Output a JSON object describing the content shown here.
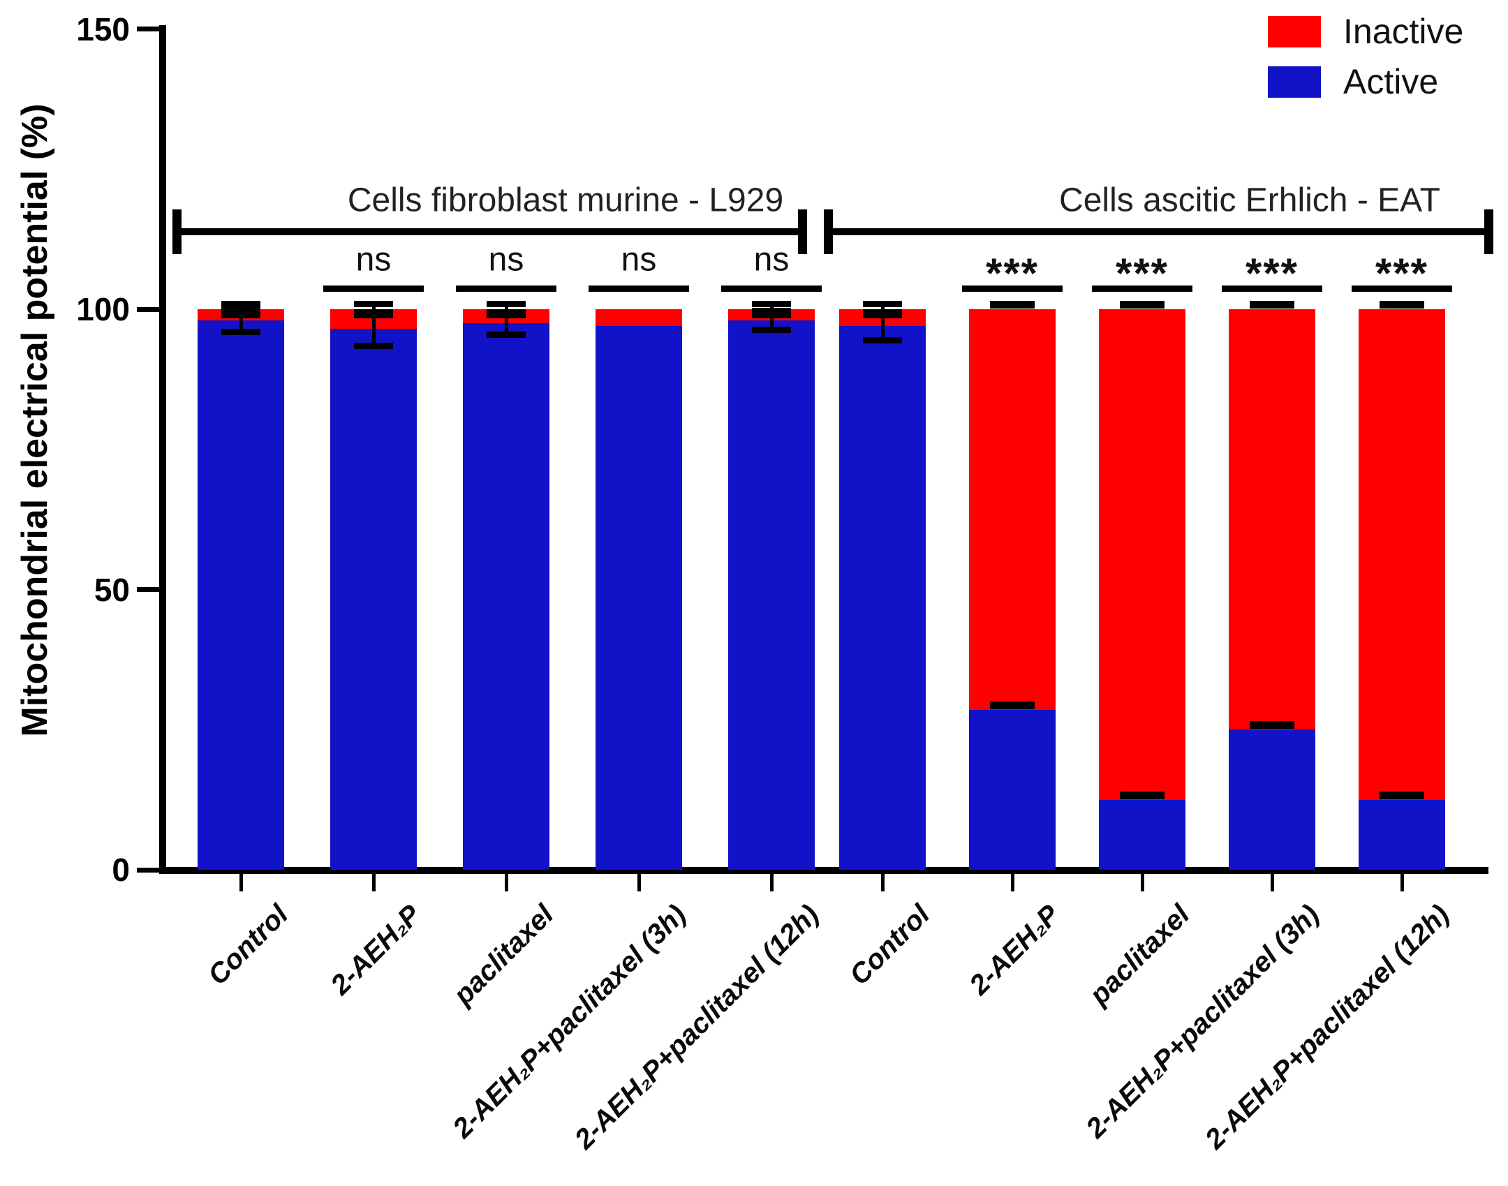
{
  "figure": {
    "background": "#ffffff"
  },
  "chart_data": {
    "type": "bar",
    "subtype": "stacked-vertical",
    "title": "",
    "xlabel": "",
    "ylabel": "Mitochondrial electrical potential (%)",
    "ylim": [
      0,
      150
    ],
    "yticks": [
      "0",
      "50",
      "100",
      "150"
    ],
    "ytick_values": [
      0,
      50,
      100,
      150
    ],
    "grid": "off",
    "legend_position": "top-right",
    "legend": [
      {
        "label": "Inactive",
        "color": "#fe0000"
      },
      {
        "label": "Active",
        "color": "#1212c8"
      }
    ],
    "series_colors": {
      "Active": "#1212c8",
      "Inactive": "#fe0000"
    },
    "groups": [
      {
        "label": "Cells fibroblast murine - L929",
        "bars": [
          {
            "label": "Control",
            "active": 98.0,
            "inactive": 2.0,
            "err_active": 2.0,
            "err_total": 1.0,
            "err_style": "ibeam",
            "sig": ""
          },
          {
            "label": "2-AEH₂P",
            "active": 96.5,
            "inactive": 3.5,
            "err_active": 3.0,
            "err_total": 1.0,
            "err_style": "ibeam",
            "sig": "ns"
          },
          {
            "label": "paclitaxel",
            "active": 97.5,
            "inactive": 2.5,
            "err_active": 2.0,
            "err_total": 1.0,
            "err_style": "ibeam",
            "sig": "ns"
          },
          {
            "label": "2-AEH₂P+paclitaxel (3h)",
            "active": 97.0,
            "inactive": 3.0,
            "err_active": 0,
            "err_total": 0,
            "err_style": "none",
            "sig": "ns"
          },
          {
            "label": "2-AEH₂P+paclitaxel (12h)",
            "active": 98.0,
            "inactive": 2.0,
            "err_active": 1.7,
            "err_total": 1.0,
            "err_style": "ibeam",
            "sig": "ns"
          }
        ]
      },
      {
        "label": "Cells ascitic Erhlich - EAT",
        "bars": [
          {
            "label": "Control",
            "active": 97.0,
            "inactive": 3.0,
            "err_active": 2.5,
            "err_total": 1.0,
            "err_style": "ibeam",
            "sig": ""
          },
          {
            "label": "2-AEH₂P",
            "active": 28.5,
            "inactive": 71.5,
            "err_active": 0.8,
            "err_total": 0.8,
            "err_style": "caps",
            "sig": "***"
          },
          {
            "label": "paclitaxel",
            "active": 12.5,
            "inactive": 87.5,
            "err_active": 0.8,
            "err_total": 0.8,
            "err_style": "caps",
            "sig": "***"
          },
          {
            "label": "2-AEH₂P+paclitaxel (3h)",
            "active": 25.0,
            "inactive": 75.0,
            "err_active": 0.8,
            "err_total": 0.8,
            "err_style": "caps",
            "sig": "***"
          },
          {
            "label": "2-AEH₂P+paclitaxel (12h)",
            "active": 12.5,
            "inactive": 87.5,
            "err_active": 0.8,
            "err_total": 0.8,
            "err_style": "caps",
            "sig": "***"
          }
        ]
      }
    ]
  }
}
